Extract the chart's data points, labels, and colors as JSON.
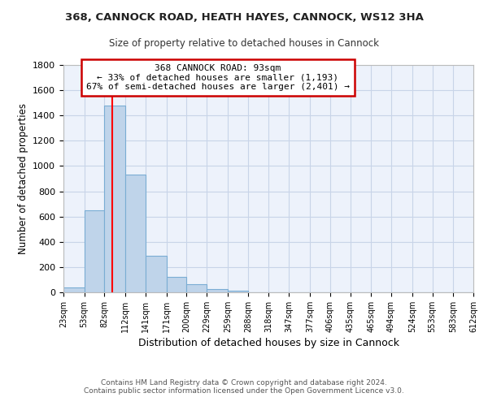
{
  "title1": "368, CANNOCK ROAD, HEATH HAYES, CANNOCK, WS12 3HA",
  "title2": "Size of property relative to detached houses in Cannock",
  "xlabel": "Distribution of detached houses by size in Cannock",
  "ylabel": "Number of detached properties",
  "bin_labels": [
    "23sqm",
    "53sqm",
    "82sqm",
    "112sqm",
    "141sqm",
    "171sqm",
    "200sqm",
    "229sqm",
    "259sqm",
    "288sqm",
    "318sqm",
    "347sqm",
    "377sqm",
    "406sqm",
    "435sqm",
    "465sqm",
    "494sqm",
    "524sqm",
    "553sqm",
    "583sqm",
    "612sqm"
  ],
  "bar_values": [
    40,
    650,
    1480,
    935,
    290,
    125,
    65,
    25,
    15,
    0,
    0,
    0,
    0,
    0,
    0,
    0,
    0,
    0,
    0,
    0
  ],
  "bin_edges": [
    23,
    53,
    82,
    112,
    141,
    171,
    200,
    229,
    259,
    288,
    318,
    347,
    377,
    406,
    435,
    465,
    494,
    524,
    553,
    583,
    612
  ],
  "bar_color": "#bfd4ea",
  "bar_edge_color": "#7aadd4",
  "red_line_x": 93,
  "annotation_line1": "368 CANNOCK ROAD: 93sqm",
  "annotation_line2": "← 33% of detached houses are smaller (1,193)",
  "annotation_line3": "67% of semi-detached houses are larger (2,401) →",
  "annotation_box_color": "#ffffff",
  "annotation_box_edge": "#cc0000",
  "ylim": [
    0,
    1800
  ],
  "yticks": [
    0,
    200,
    400,
    600,
    800,
    1000,
    1200,
    1400,
    1600,
    1800
  ],
  "footer1": "Contains HM Land Registry data © Crown copyright and database right 2024.",
  "footer2": "Contains public sector information licensed under the Open Government Licence v3.0.",
  "bg_color": "#edf2fb",
  "grid_color": "#c8d4e8"
}
